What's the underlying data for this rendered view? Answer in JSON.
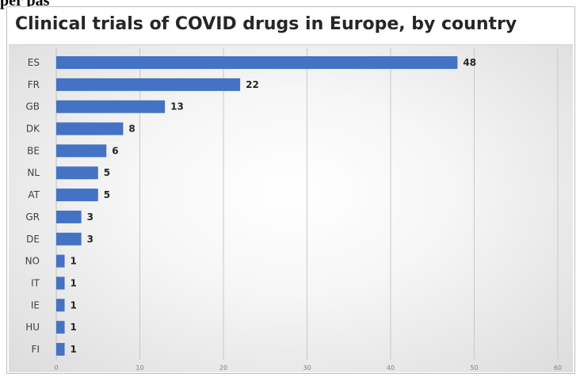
{
  "crop_text": "per pas",
  "chart_data": {
    "type": "bar",
    "orientation": "horizontal",
    "title": "Clinical trials of COVID drugs in Europe, by country",
    "categories": [
      "ES",
      "FR",
      "GB",
      "DK",
      "BE",
      "NL",
      "AT",
      "GR",
      "DE",
      "NO",
      "IT",
      "IE",
      "HU",
      "FI"
    ],
    "values": [
      48,
      22,
      13,
      8,
      6,
      5,
      5,
      3,
      3,
      1,
      1,
      1,
      1,
      1
    ],
    "xlim": [
      0,
      60
    ],
    "xticks": [
      0,
      10,
      20,
      30,
      40,
      50,
      60
    ],
    "xlabel": "",
    "ylabel": "",
    "grid": "vertical",
    "data_labels": true,
    "bar_color": "#4472c4"
  }
}
